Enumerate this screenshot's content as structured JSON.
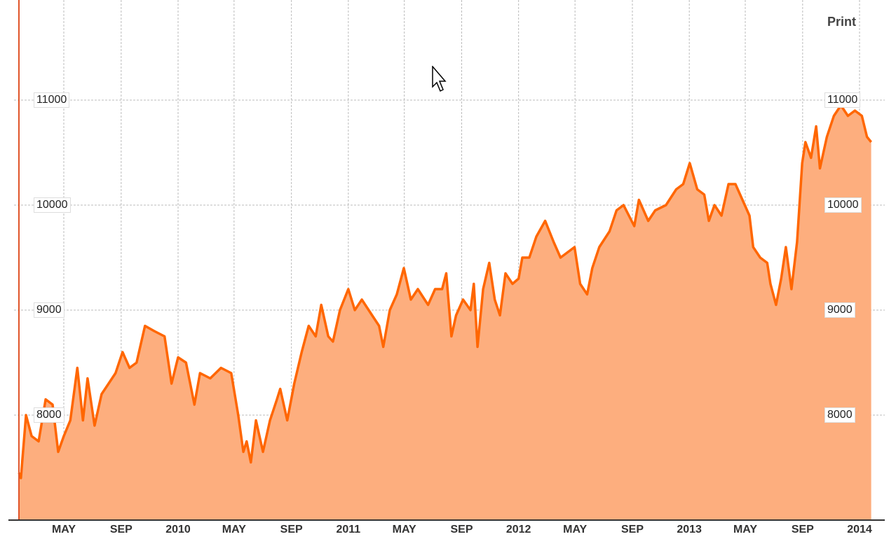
{
  "toolbar": {
    "print_label": "Print"
  },
  "colors": {
    "line": "#ff6600",
    "fill": "#fdae7e",
    "grid": "#bbbbbb",
    "left_axis_line": "#e0552a"
  },
  "chart_data": {
    "type": "area",
    "title": "",
    "xlabel": "",
    "ylabel": "",
    "ylim": [
      7000,
      11600
    ],
    "xlim": [
      "2009-01-25",
      "2014-01-26"
    ],
    "grid": true,
    "y_ticks": [
      8000,
      9000,
      10000,
      11000
    ],
    "y_tick_labels": [
      "8000",
      "9000",
      "10000",
      "11000"
    ],
    "x_ticks": [
      {
        "date": "2009-05-01",
        "label": "MAY"
      },
      {
        "date": "2009-09-01",
        "label": "SEP"
      },
      {
        "date": "2010-01-01",
        "label": "2010"
      },
      {
        "date": "2010-05-01",
        "label": "MAY"
      },
      {
        "date": "2010-09-01",
        "label": "SEP"
      },
      {
        "date": "2011-01-01",
        "label": "2011"
      },
      {
        "date": "2011-05-01",
        "label": "MAY"
      },
      {
        "date": "2011-09-01",
        "label": "SEP"
      },
      {
        "date": "2012-01-01",
        "label": "2012"
      },
      {
        "date": "2012-05-01",
        "label": "MAY"
      },
      {
        "date": "2012-09-01",
        "label": "SEP"
      },
      {
        "date": "2013-01-01",
        "label": "2013"
      },
      {
        "date": "2013-05-01",
        "label": "MAY"
      },
      {
        "date": "2013-09-01",
        "label": "SEP"
      },
      {
        "date": "2014-01-01",
        "label": "2014"
      }
    ],
    "series": [
      {
        "x": [
          "2009-01-25",
          "2009-01-29",
          "2009-02-09",
          "2009-02-21",
          "2009-03-08",
          "2009-03-23",
          "2009-04-07",
          "2009-04-19",
          "2009-05-01",
          "2009-05-15",
          "2009-05-30",
          "2009-06-11",
          "2009-06-21",
          "2009-07-06",
          "2009-07-21",
          "2009-08-05",
          "2009-08-20",
          "2009-09-04",
          "2009-09-19",
          "2009-10-04",
          "2009-10-22",
          "2009-11-11",
          "2009-12-03",
          "2009-12-18",
          "2010-01-01",
          "2010-01-18",
          "2010-02-05",
          "2010-02-17",
          "2010-03-11",
          "2010-04-03",
          "2010-04-25",
          "2010-05-10",
          "2010-05-21",
          "2010-05-28",
          "2010-06-06",
          "2010-06-17",
          "2010-07-02",
          "2010-07-17",
          "2010-08-01",
          "2010-08-08",
          "2010-08-23",
          "2010-09-07",
          "2010-09-23",
          "2010-10-08",
          "2010-10-23",
          "2010-11-04",
          "2010-11-19",
          "2010-11-29",
          "2010-12-14",
          "2011-01-01",
          "2011-01-15",
          "2011-01-30",
          "2011-02-21",
          "2011-03-08",
          "2011-03-17",
          "2011-03-31",
          "2011-04-15",
          "2011-04-30",
          "2011-05-15",
          "2011-05-30",
          "2011-06-21",
          "2011-07-06",
          "2011-07-21",
          "2011-07-30",
          "2011-08-10",
          "2011-08-20",
          "2011-09-04",
          "2011-09-20",
          "2011-09-27",
          "2011-10-05",
          "2011-10-17",
          "2011-10-30",
          "2011-11-11",
          "2011-11-22",
          "2011-12-04",
          "2011-12-19",
          "2012-01-01",
          "2012-01-09",
          "2012-01-24",
          "2012-02-08",
          "2012-02-27",
          "2012-03-16",
          "2012-03-31",
          "2012-04-15",
          "2012-04-30",
          "2012-05-12",
          "2012-05-27",
          "2012-06-07",
          "2012-06-22",
          "2012-07-14",
          "2012-07-29",
          "2012-08-13",
          "2012-09-05",
          "2012-09-15",
          "2012-10-05",
          "2012-10-20",
          "2012-11-12",
          "2012-12-04",
          "2012-12-19",
          "2013-01-02",
          "2013-01-18",
          "2013-02-02",
          "2013-02-12",
          "2013-02-24",
          "2013-03-11",
          "2013-03-26",
          "2013-04-10",
          "2013-04-25",
          "2013-05-10",
          "2013-05-18",
          "2013-06-02",
          "2013-06-17",
          "2013-06-24",
          "2013-07-06",
          "2013-07-17",
          "2013-07-27",
          "2013-08-08",
          "2013-08-20",
          "2013-08-31",
          "2013-09-07",
          "2013-09-19",
          "2013-09-30",
          "2013-10-08",
          "2013-10-23",
          "2013-11-07",
          "2013-11-22",
          "2013-12-07",
          "2013-12-22",
          "2014-01-06",
          "2014-01-17",
          "2014-01-26"
        ],
        "values": [
          7450,
          7400,
          8000,
          7800,
          7750,
          8150,
          8100,
          7650,
          7800,
          7950,
          8450,
          7950,
          8350,
          7900,
          8200,
          8300,
          8400,
          8600,
          8450,
          8500,
          8850,
          8800,
          8750,
          8300,
          8550,
          8500,
          8100,
          8400,
          8350,
          8450,
          8400,
          8000,
          7650,
          7750,
          7550,
          7950,
          7650,
          7950,
          8150,
          8250,
          7950,
          8300,
          8600,
          8850,
          8750,
          9050,
          8750,
          8700,
          9000,
          9200,
          9000,
          9100,
          8950,
          8850,
          8650,
          9000,
          9150,
          9400,
          9100,
          9200,
          9050,
          9200,
          9200,
          9350,
          8750,
          8950,
          9100,
          9000,
          9250,
          8650,
          9200,
          9450,
          9100,
          8950,
          9350,
          9250,
          9300,
          9500,
          9500,
          9700,
          9850,
          9650,
          9500,
          9550,
          9600,
          9250,
          9150,
          9400,
          9600,
          9750,
          9950,
          10000,
          9800,
          10050,
          9850,
          9950,
          10000,
          10150,
          10200,
          10400,
          10150,
          10100,
          9850,
          10000,
          9900,
          10200,
          10200,
          10050,
          9900,
          9600,
          9500,
          9450,
          9250,
          9050,
          9300,
          9600,
          9200,
          9650,
          10400,
          10600,
          10450,
          10750,
          10350,
          10650,
          10850,
          10950,
          10850,
          10900,
          10850,
          10650,
          10600
        ]
      }
    ]
  }
}
